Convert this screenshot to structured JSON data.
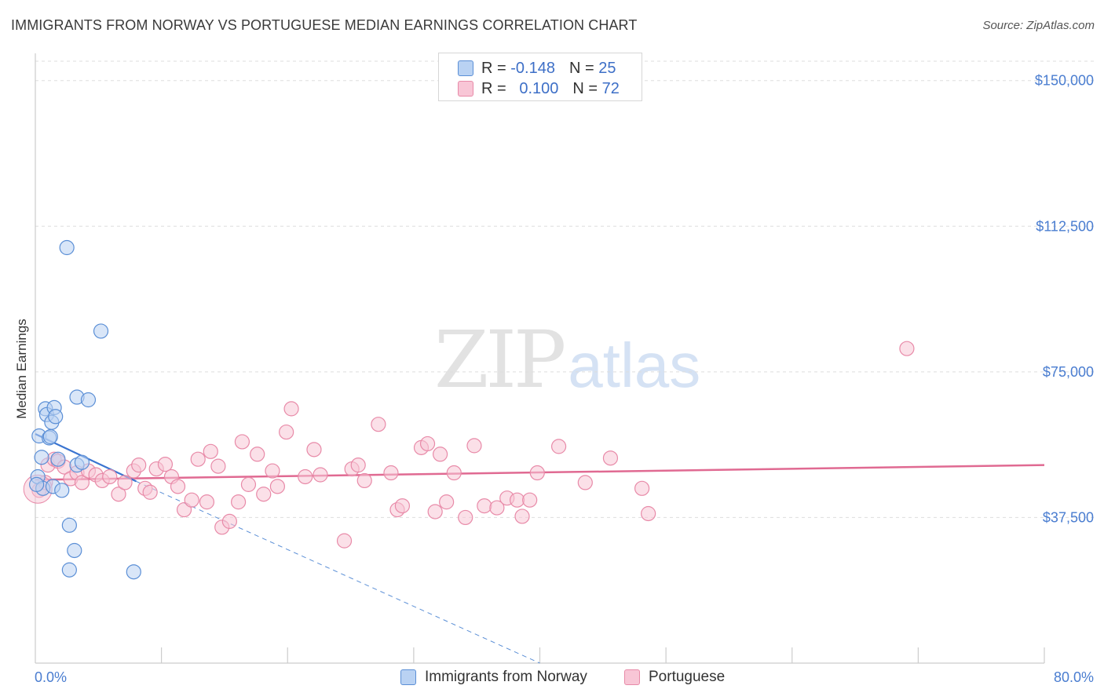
{
  "header": {
    "title": "IMMIGRANTS FROM NORWAY VS PORTUGUESE MEDIAN EARNINGS CORRELATION CHART",
    "source": "Source: ZipAtlas.com"
  },
  "watermark": {
    "zip": "ZIP",
    "atlas": "atlas"
  },
  "legend": {
    "rows": [
      {
        "r_label": "R =",
        "r_value": "-0.148",
        "n_label": "N =",
        "n_value": "25"
      },
      {
        "r_label": "R =",
        "r_value": "0.100",
        "n_label": "N =",
        "n_value": "72"
      }
    ]
  },
  "bottom_legend": {
    "items": [
      {
        "label": "Immigrants from Norway"
      },
      {
        "label": "Portuguese"
      }
    ]
  },
  "colors": {
    "blue_fill": "#b9d2f3",
    "blue_stroke": "#5b8fd6",
    "blue_line": "#3a74d0",
    "pink_fill": "#f8c6d6",
    "pink_stroke": "#e88aa8",
    "pink_line": "#e06a92",
    "grid": "#dddddd",
    "axis_text": "#4a7dd0"
  },
  "chart_data": {
    "type": "scatter",
    "title": "IMMIGRANTS FROM NORWAY VS PORTUGUESE MEDIAN EARNINGS CORRELATION CHART",
    "xlabel": "",
    "ylabel": "Median Earnings",
    "xlim": [
      0,
      80
    ],
    "ylim": [
      0,
      155000
    ],
    "x_tick_labels": [
      {
        "value": 0,
        "label": "0.0%"
      },
      {
        "value": 80,
        "label": "80.0%"
      }
    ],
    "y_ticks": [
      {
        "value": 37500,
        "label": "$37,500"
      },
      {
        "value": 75000,
        "label": "$75,000"
      },
      {
        "value": 112500,
        "label": "$112,500"
      },
      {
        "value": 150000,
        "label": "$150,000"
      }
    ],
    "grid": true,
    "series": [
      {
        "name": "Immigrants from Norway",
        "R": -0.148,
        "N": 25,
        "points": [
          [
            0.2,
            48000
          ],
          [
            0.3,
            58500
          ],
          [
            0.5,
            53000
          ],
          [
            0.6,
            45000
          ],
          [
            0.8,
            65500
          ],
          [
            0.9,
            64000
          ],
          [
            1.1,
            58000
          ],
          [
            1.2,
            58300
          ],
          [
            1.3,
            62000
          ],
          [
            1.4,
            45500
          ],
          [
            1.5,
            65800
          ],
          [
            1.6,
            63500
          ],
          [
            1.8,
            52500
          ],
          [
            2.1,
            44500
          ],
          [
            2.5,
            107000
          ],
          [
            2.7,
            35500
          ],
          [
            2.7,
            24000
          ],
          [
            3.1,
            29000
          ],
          [
            3.3,
            68500
          ],
          [
            3.3,
            51000
          ],
          [
            3.7,
            51700
          ],
          [
            4.2,
            67800
          ],
          [
            5.2,
            85500
          ],
          [
            7.8,
            23500
          ],
          [
            0.1,
            46000
          ]
        ],
        "trend": {
          "x0": 0,
          "y0": 59000,
          "x1": 8.0,
          "y1": 46800,
          "extend_x1": 40,
          "extend_y1": -2000
        }
      },
      {
        "name": "Portuguese",
        "R": 0.1,
        "N": 72,
        "points": [
          [
            0.3,
            44500
          ],
          [
            1.0,
            51000
          ],
          [
            1.5,
            52500
          ],
          [
            1.8,
            52000
          ],
          [
            2.3,
            50500
          ],
          [
            2.8,
            47500
          ],
          [
            3.3,
            49000
          ],
          [
            3.7,
            46500
          ],
          [
            4.2,
            49500
          ],
          [
            4.8,
            48500
          ],
          [
            5.3,
            47000
          ],
          [
            5.9,
            48000
          ],
          [
            6.6,
            43500
          ],
          [
            7.1,
            46500
          ],
          [
            7.8,
            49500
          ],
          [
            8.2,
            51000
          ],
          [
            8.7,
            45000
          ],
          [
            9.1,
            44000
          ],
          [
            9.6,
            50000
          ],
          [
            10.3,
            51200
          ],
          [
            10.8,
            48000
          ],
          [
            11.3,
            45500
          ],
          [
            11.8,
            39500
          ],
          [
            12.4,
            42000
          ],
          [
            12.9,
            52500
          ],
          [
            13.6,
            41500
          ],
          [
            13.9,
            54500
          ],
          [
            14.5,
            50700
          ],
          [
            14.8,
            35000
          ],
          [
            15.4,
            36500
          ],
          [
            16.1,
            41500
          ],
          [
            16.4,
            57000
          ],
          [
            16.9,
            46000
          ],
          [
            17.6,
            53800
          ],
          [
            18.1,
            43500
          ],
          [
            18.8,
            49500
          ],
          [
            19.2,
            45500
          ],
          [
            19.9,
            59500
          ],
          [
            20.3,
            65500
          ],
          [
            21.4,
            48000
          ],
          [
            22.1,
            55000
          ],
          [
            22.6,
            48500
          ],
          [
            24.5,
            31500
          ],
          [
            25.1,
            50000
          ],
          [
            25.6,
            51000
          ],
          [
            26.1,
            47000
          ],
          [
            27.2,
            61500
          ],
          [
            28.2,
            49000
          ],
          [
            28.7,
            39500
          ],
          [
            29.1,
            40500
          ],
          [
            30.6,
            55500
          ],
          [
            31.1,
            56500
          ],
          [
            31.7,
            39000
          ],
          [
            32.1,
            53800
          ],
          [
            32.6,
            41500
          ],
          [
            33.2,
            49000
          ],
          [
            34.1,
            37500
          ],
          [
            34.8,
            56000
          ],
          [
            35.6,
            40500
          ],
          [
            36.6,
            40000
          ],
          [
            37.4,
            42500
          ],
          [
            38.2,
            42000
          ],
          [
            38.6,
            37800
          ],
          [
            39.2,
            42000
          ],
          [
            39.8,
            49000
          ],
          [
            41.5,
            55800
          ],
          [
            43.6,
            46500
          ],
          [
            45.6,
            52800
          ],
          [
            48.1,
            45000
          ],
          [
            48.6,
            38500
          ],
          [
            69.1,
            81000
          ],
          [
            0.8,
            46500
          ]
        ],
        "trend": {
          "x0": 0,
          "y0": 47200,
          "x1": 80,
          "y1": 51000
        }
      }
    ]
  }
}
